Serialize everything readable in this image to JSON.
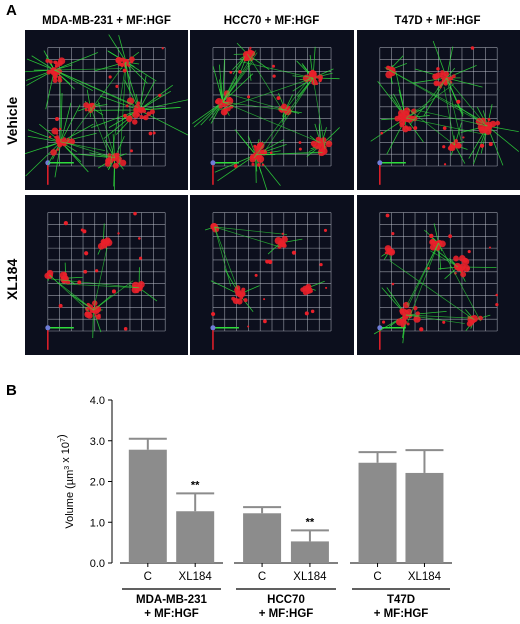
{
  "figure": {
    "panel_a_label": "A",
    "panel_b_label": "B",
    "columns": [
      "MDA-MB-231 + MF:HGF",
      "HCC70 + MF:HGF",
      "T47D + MF:HGF"
    ],
    "rows": [
      "Vehicle",
      "XL184"
    ]
  },
  "colors": {
    "image_bg": "#0c0f1d",
    "grid": "#c7ccd6",
    "cell_red": "#e8202a",
    "fiber_green": "#2fdc3c",
    "bar": "#8c8c8c"
  },
  "chart_data": {
    "type": "bar",
    "ylabel_prefix": "Volume (µm",
    "ylabel_sup1": "3",
    "ylabel_mid": " x 10",
    "ylabel_sup2": "7",
    "ylabel_suffix": ")",
    "ylim": [
      0,
      4
    ],
    "yticks": [
      "0.0",
      "1.0",
      "2.0",
      "3.0",
      "4.0"
    ],
    "grid": false,
    "groups": [
      {
        "line1": "MDA-MB-231",
        "line2": "+ MF:HGF",
        "bars": [
          {
            "category": "C",
            "value": 2.78,
            "error": 0.27,
            "sig": ""
          },
          {
            "category": "XL184",
            "value": 1.27,
            "error": 0.44,
            "sig": "**"
          }
        ]
      },
      {
        "line1": "HCC70",
        "line2": "+ MF:HGF",
        "bars": [
          {
            "category": "C",
            "value": 1.22,
            "error": 0.15,
            "sig": ""
          },
          {
            "category": "XL184",
            "value": 0.53,
            "error": 0.27,
            "sig": "**"
          }
        ]
      },
      {
        "line1": "T47D",
        "line2": "+ MF:HGF",
        "bars": [
          {
            "category": "C",
            "value": 2.46,
            "error": 0.26,
            "sig": ""
          },
          {
            "category": "XL184",
            "value": 2.21,
            "error": 0.56,
            "sig": ""
          }
        ]
      }
    ]
  }
}
